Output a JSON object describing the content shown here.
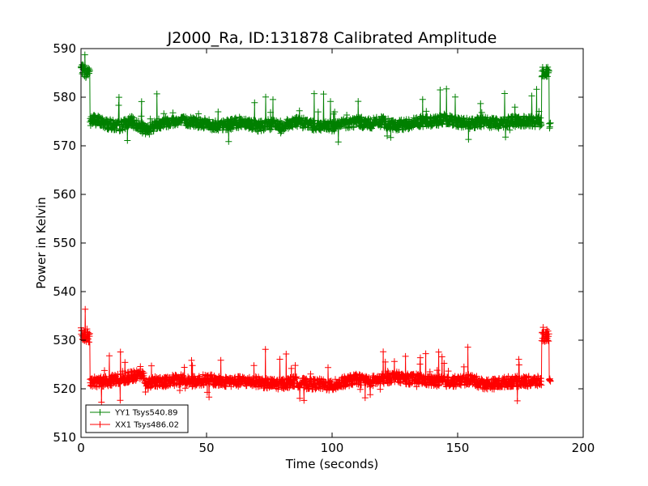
{
  "chart_data": {
    "type": "line",
    "title": "J2000_Ra, ID:131878 Calibrated Amplitude",
    "xlabel": "Time (seconds)",
    "ylabel": "Power in Kelvin",
    "xlim": [
      0,
      200
    ],
    "ylim": [
      510,
      590
    ],
    "xticks": [
      0,
      50,
      100,
      150,
      200
    ],
    "yticks": [
      510,
      520,
      530,
      540,
      550,
      560,
      570,
      580,
      590
    ],
    "grid": false,
    "legend_position": "lower-left",
    "marker": "+",
    "series": [
      {
        "name": "YY1 Tsys540.89",
        "color": "#008000",
        "x": [
          0,
          1,
          2,
          3,
          4,
          5,
          10,
          15,
          20,
          25,
          26,
          30,
          35,
          40,
          45,
          50,
          55,
          60,
          65,
          70,
          75,
          80,
          85,
          90,
          95,
          100,
          105,
          110,
          115,
          120,
          125,
          130,
          135,
          140,
          145,
          150,
          155,
          160,
          165,
          170,
          175,
          180,
          182,
          183,
          184,
          185,
          186,
          187
        ],
        "y": [
          586,
          585.5,
          585,
          585.5,
          575,
          575.5,
          574.5,
          574,
          575,
          573.5,
          573,
          574.5,
          575,
          575,
          575,
          574.5,
          574,
          574.5,
          575,
          574,
          574.5,
          574,
          575,
          574.5,
          574,
          574,
          574.5,
          575,
          574.5,
          575,
          574,
          574.5,
          575,
          575,
          575.5,
          575,
          574.5,
          575,
          574.5,
          575,
          575,
          575,
          575,
          586,
          585.5,
          585,
          585,
          574
        ]
      },
      {
        "name": "XX1 Tsys486.02",
        "color": "#ff0000",
        "x": [
          0,
          1,
          2,
          3,
          4,
          5,
          10,
          15,
          20,
          25,
          26,
          30,
          35,
          40,
          45,
          50,
          55,
          60,
          65,
          70,
          75,
          80,
          85,
          90,
          95,
          100,
          105,
          110,
          115,
          120,
          125,
          130,
          135,
          140,
          145,
          150,
          155,
          160,
          165,
          170,
          175,
          180,
          182,
          183,
          184,
          185,
          186,
          187
        ],
        "y": [
          531.5,
          531,
          530.5,
          530.5,
          521,
          521.5,
          521.5,
          522,
          522.5,
          523,
          521,
          521.5,
          521.5,
          522,
          521.5,
          522,
          521.5,
          521.5,
          521.5,
          521.5,
          521,
          521,
          521.5,
          521,
          521,
          520.5,
          521.5,
          522,
          521.5,
          522,
          522.5,
          522,
          522,
          521.5,
          521.5,
          521.5,
          522,
          521,
          521,
          521.5,
          521.5,
          521.5,
          521.5,
          531,
          531,
          530.5,
          530.5,
          521
        ]
      }
    ]
  }
}
